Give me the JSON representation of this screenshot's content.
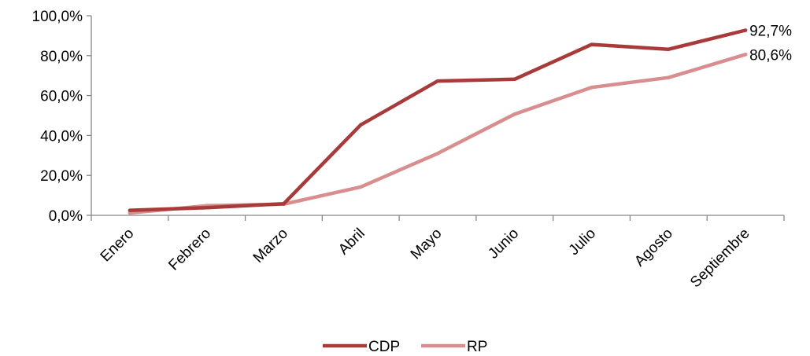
{
  "chart_data": {
    "type": "line",
    "categories": [
      "Enero",
      "Febrero",
      "Marzo",
      "Abril",
      "Mayo",
      "Junio",
      "Julio",
      "Agosto",
      "Septiembre"
    ],
    "series": [
      {
        "name": "CDP",
        "color": "#a83a3a",
        "values": [
          2.5,
          3.8,
          5.8,
          45.3,
          67.3,
          68.2,
          85.6,
          83.2,
          92.7
        ]
      },
      {
        "name": "RP",
        "color": "#d88e8e",
        "values": [
          1.2,
          4.8,
          5.6,
          14.2,
          31.0,
          50.7,
          64.1,
          69.0,
          80.6
        ]
      }
    ],
    "y_ticks": [
      "0,0%",
      "20,0%",
      "40,0%",
      "60,0%",
      "80,0%",
      "100,0%"
    ],
    "ylim": [
      0,
      100
    ],
    "end_labels": [
      "92,7%",
      "80,6%"
    ],
    "legend_position": "bottom",
    "grid": false
  }
}
